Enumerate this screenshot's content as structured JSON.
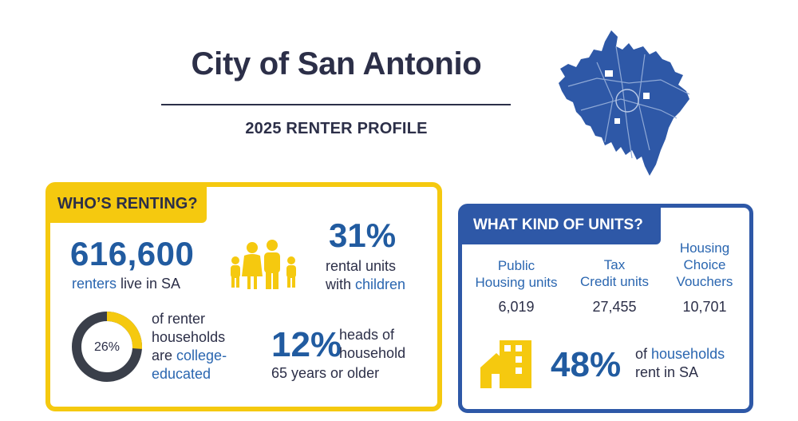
{
  "header": {
    "title": "City of San Antonio",
    "subtitle": "2025 RENTER PROFILE"
  },
  "colors": {
    "navy": "#2c2f48",
    "blue": "#2e58a7",
    "yellow": "#f5c90f",
    "text_blue": "#215ba0"
  },
  "whos_renting": {
    "tag": "WHO’S RENTING?",
    "renters": {
      "value": "616,600",
      "hl": "renters",
      "rest": " live in SA"
    },
    "children": {
      "value": "31%",
      "line1": "rental units",
      "line2_pre": "with ",
      "line2_hl": "children"
    },
    "college": {
      "percent_label": "26%",
      "percent": 26,
      "line1": "of renter",
      "line2": "households",
      "line3_pre": "are ",
      "line3_hl": "college-",
      "line4_hl": "educated"
    },
    "seniors": {
      "value": "12%",
      "line1": "heads of",
      "line2": "household",
      "line3": "65 years or older"
    }
  },
  "units": {
    "tag": "WHAT KIND OF UNITS?",
    "columns": [
      {
        "label_1": "Public",
        "label_2": "Housing units",
        "value": "6,019"
      },
      {
        "label_1": "Tax",
        "label_2": "Credit units",
        "value": "27,455"
      },
      {
        "label_1": "Housing",
        "label_2": "Choice",
        "label_3": "Vouchers",
        "value": "10,701"
      }
    ],
    "households": {
      "value": "48%",
      "pre": "of ",
      "hl": "households",
      "line2": "rent in SA"
    }
  }
}
